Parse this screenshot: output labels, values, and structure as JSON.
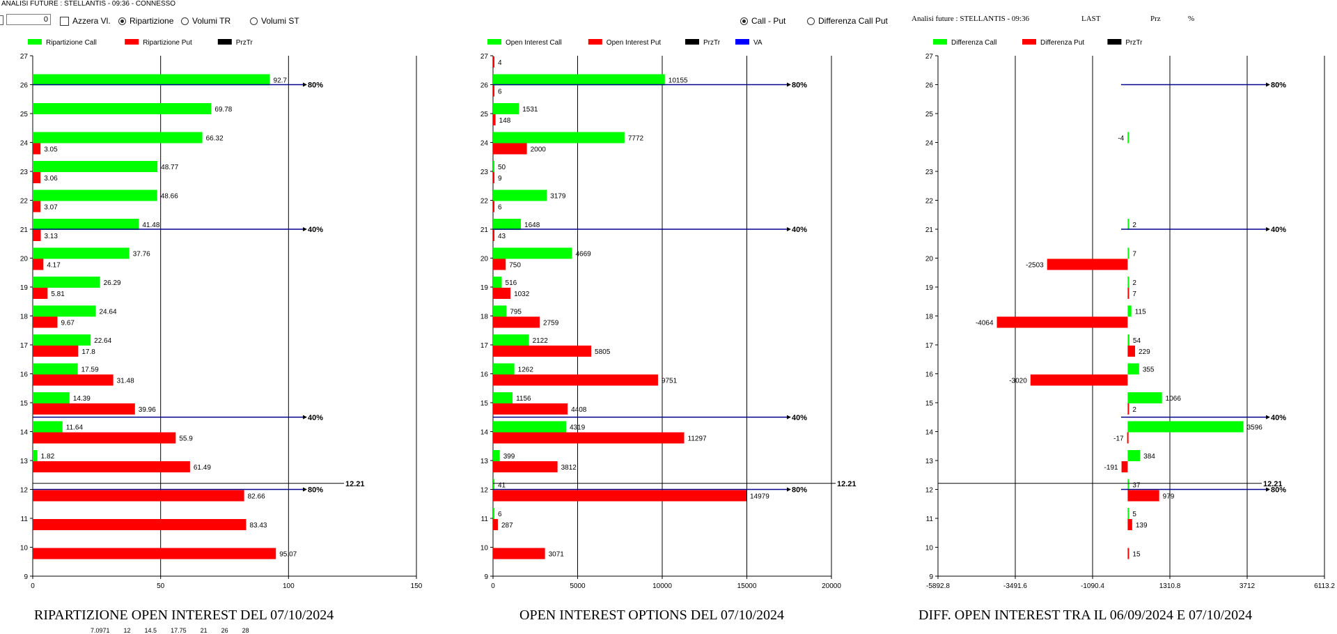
{
  "window_title": "ANALISI FUTURE : STELLANTIS - 09:36 - CONNESSO",
  "toolbar": {
    "number_value": "0",
    "azzera_label": "Azzera Vl.",
    "view_options": [
      {
        "label": "Ripartizione",
        "selected": true
      },
      {
        "label": "Volumi TR",
        "selected": false
      },
      {
        "label": "Volumi ST",
        "selected": false
      }
    ],
    "compare_options": [
      {
        "label": "Call - Put",
        "selected": true
      },
      {
        "label": "Differenza Call Put",
        "selected": false
      }
    ],
    "info_title": "Analisi future : STELLANTIS - 09:36",
    "info_last": "LAST",
    "info_prz": "Prz",
    "info_pct": "%"
  },
  "colors": {
    "call": "#00ff00",
    "put": "#ff0000",
    "prztr": "#000000",
    "va": "#0000ff",
    "refline": "#00008b"
  },
  "charts": [
    {
      "id": "ripartizione",
      "title": "RIPARTIZIONE OPEN INTEREST DEL 07/10/2024",
      "legend": [
        {
          "label": "Ripartizione Call",
          "color": "#00ff00"
        },
        {
          "label": "Ripartizione Put",
          "color": "#ff0000"
        },
        {
          "label": "PrzTr",
          "color": "#000000"
        }
      ],
      "x_ticks": [
        "0",
        "50",
        "100",
        "150"
      ],
      "y_ticks": [
        "9",
        "10",
        "11",
        "12",
        "13",
        "14",
        "15",
        "16",
        "17",
        "18",
        "19",
        "20",
        "21",
        "22",
        "23",
        "24",
        "25",
        "26",
        "27"
      ],
      "ref_lines": [
        {
          "y": 26,
          "label": "80%"
        },
        {
          "y": 21,
          "label": "40%"
        },
        {
          "y": 14.5,
          "label": "40%"
        },
        {
          "y": 12,
          "label": "80%"
        }
      ],
      "prztr": {
        "value": 12.21,
        "label": "12.21"
      }
    },
    {
      "id": "open-interest",
      "title": "OPEN INTEREST OPTIONS DEL 07/10/2024",
      "legend": [
        {
          "label": "Open Interest Call",
          "color": "#00ff00"
        },
        {
          "label": "Open Interest Put",
          "color": "#ff0000"
        },
        {
          "label": "PrzTr",
          "color": "#000000"
        },
        {
          "label": "VA",
          "color": "#0000ff"
        }
      ],
      "x_ticks": [
        "0",
        "5000",
        "10000",
        "15000",
        "20000"
      ],
      "y_ticks": [
        "9",
        "10",
        "11",
        "12",
        "13",
        "14",
        "15",
        "16",
        "17",
        "18",
        "19",
        "20",
        "21",
        "22",
        "23",
        "24",
        "25",
        "26",
        "27"
      ],
      "ref_lines": [
        {
          "y": 26,
          "label": "80%"
        },
        {
          "y": 21,
          "label": "40%"
        },
        {
          "y": 14.5,
          "label": "40%"
        },
        {
          "y": 12,
          "label": "80%"
        }
      ],
      "prztr": {
        "value": 12.21,
        "label": "12.21"
      }
    },
    {
      "id": "differenza",
      "title": "DIFF. OPEN INTEREST TRA IL 06/09/2024 E 07/10/2024",
      "legend": [
        {
          "label": "Differenza Call",
          "color": "#00ff00"
        },
        {
          "label": "Differenza Put",
          "color": "#ff0000"
        },
        {
          "label": "PrzTr",
          "color": "#000000"
        }
      ],
      "x_ticks": [
        "-5892.8",
        "-3491.6",
        "-1090.4",
        "1310.8",
        "3712",
        "6113.2"
      ],
      "y_ticks": [
        "9",
        "10",
        "11",
        "12",
        "13",
        "14",
        "15",
        "16",
        "17",
        "18",
        "19",
        "20",
        "21",
        "22",
        "23",
        "24",
        "25",
        "26",
        "27"
      ],
      "ref_lines": [
        {
          "y": 26,
          "label": "80%"
        },
        {
          "y": 21,
          "label": "40%"
        },
        {
          "y": 14.5,
          "label": "40%"
        },
        {
          "y": 12,
          "label": "80%"
        }
      ],
      "prztr": {
        "value": 12.21,
        "label": "12.21"
      }
    }
  ],
  "chart_data": [
    {
      "type": "bar",
      "orientation": "horizontal",
      "title": "RIPARTIZIONE OPEN INTEREST DEL 07/10/2024",
      "categories": [
        26,
        25,
        24,
        23,
        22,
        21,
        20,
        19,
        18,
        17,
        16,
        15,
        14,
        13,
        12,
        11,
        10
      ],
      "series": [
        {
          "name": "Ripartizione Call",
          "values": [
            92.7,
            69.78,
            66.32,
            48.77,
            48.66,
            41.48,
            37.76,
            26.29,
            24.64,
            22.64,
            17.59,
            14.39,
            11.64,
            1.82,
            null,
            null,
            null
          ]
        },
        {
          "name": "Ripartizione Put",
          "values": [
            null,
            null,
            3.05,
            3.06,
            3.07,
            3.13,
            4.17,
            5.81,
            9.67,
            17.8,
            31.48,
            39.96,
            55.9,
            61.49,
            82.66,
            83.43,
            95.07
          ]
        }
      ],
      "xlim": [
        0,
        150
      ],
      "ylim": [
        9,
        27
      ]
    },
    {
      "type": "bar",
      "orientation": "horizontal",
      "title": "OPEN INTEREST OPTIONS DEL 07/10/2024",
      "categories": [
        27,
        26,
        25,
        24,
        23,
        22,
        21,
        20,
        19,
        18,
        17,
        16,
        15,
        14,
        13,
        12,
        11,
        10
      ],
      "series": [
        {
          "name": "Open Interest Call",
          "values": [
            null,
            10155,
            1531,
            7772,
            50,
            3179,
            1648,
            4669,
            516,
            795,
            2122,
            1262,
            1156,
            4319,
            399,
            41,
            6,
            null
          ]
        },
        {
          "name": "Open Interest Put",
          "values": [
            4,
            6,
            148,
            2000,
            9,
            6,
            43,
            750,
            1032,
            2759,
            5805,
            9751,
            4408,
            11297,
            3812,
            14979,
            287,
            3071
          ]
        }
      ],
      "xlim": [
        0,
        20000
      ],
      "ylim": [
        9,
        27
      ]
    },
    {
      "type": "bar",
      "orientation": "horizontal",
      "title": "DIFF. OPEN INTEREST TRA IL 06/09/2024 E 07/10/2024",
      "categories": [
        24,
        21,
        20,
        19,
        18,
        17,
        16,
        15,
        14,
        13,
        12,
        11,
        10
      ],
      "series": [
        {
          "name": "Differenza Call",
          "values": [
            -4,
            2,
            7,
            2,
            115,
            54,
            355,
            1066,
            3596,
            384,
            37,
            5,
            null
          ]
        },
        {
          "name": "Differenza Put",
          "values": [
            null,
            null,
            -2503,
            7,
            -4064,
            229,
            -3020,
            2,
            -17,
            -191,
            979,
            139,
            15
          ]
        }
      ],
      "xlim": [
        -5892.8,
        6113.2
      ],
      "ylim": [
        9,
        27
      ]
    }
  ],
  "footer_values": [
    "7.0971",
    "12",
    "14.5",
    "17.75",
    "21",
    "26",
    "28"
  ]
}
